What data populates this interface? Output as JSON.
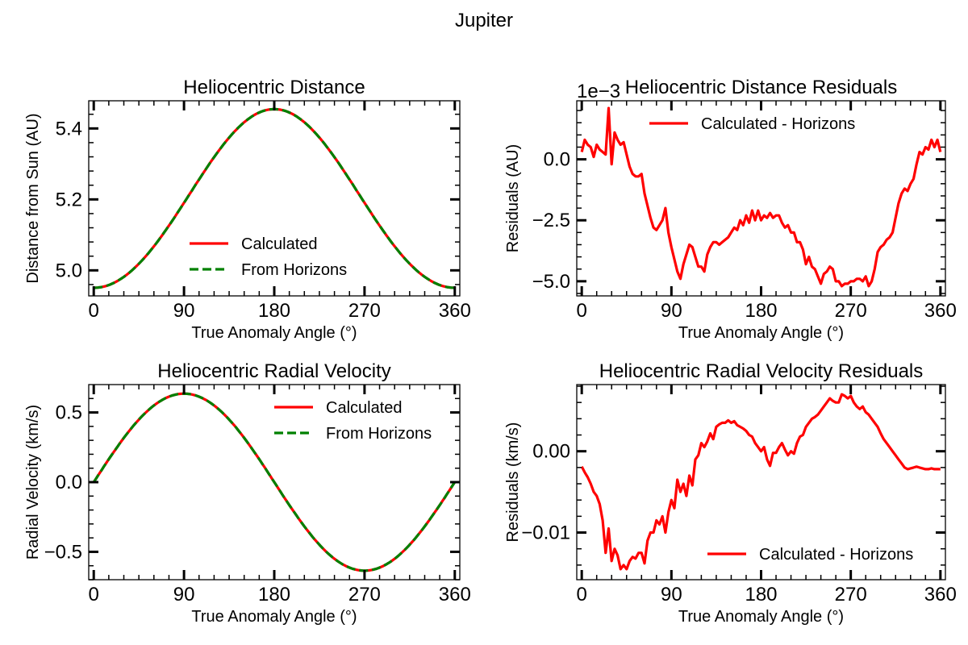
{
  "figure": {
    "title": "Jupiter"
  },
  "colors": {
    "calculated": "#ff0000",
    "horizons": "#008000",
    "axes": "#000000"
  },
  "chart_data": [
    {
      "type": "line",
      "title": "Heliocentric Distance",
      "xlabel": "True Anomaly Angle (°)",
      "ylabel": "Distance from Sun (AU)",
      "xlim": [
        -5,
        365
      ],
      "ylim": [
        4.928,
        5.478
      ],
      "xticks": [
        0,
        90,
        180,
        270,
        360
      ],
      "yticks": [
        5.0,
        5.2,
        5.4
      ],
      "ytick_labels": [
        "5.0",
        "5.2",
        "5.4"
      ],
      "offset_text": "",
      "legend": "lower-center",
      "generator": {
        "kind": "distance",
        "a": 5.2026,
        "e": 0.0484
      },
      "series": [
        {
          "name": "Calculated",
          "color": "#ff0000",
          "style": "solid"
        },
        {
          "name": "From Horizons",
          "color": "#008000",
          "style": "dashed"
        }
      ]
    },
    {
      "type": "line",
      "title": "Heliocentric Distance Residuals",
      "xlabel": "True Anomaly Angle (°)",
      "ylabel": "Residuals (AU)",
      "xlim": [
        -5,
        365
      ],
      "ylim": [
        -5.6,
        2.4
      ],
      "xticks": [
        0,
        90,
        180,
        270,
        360
      ],
      "yticks": [
        0,
        -2.5,
        -5.0
      ],
      "ytick_labels": [
        "0.0",
        "−2.5",
        "−5.0"
      ],
      "offset_text": "1e−3",
      "legend": "top-center",
      "series": [
        {
          "name": "Calculated - Horizons",
          "color": "#ff0000",
          "style": "solid",
          "x": [
            0,
            3,
            6,
            9,
            12,
            15,
            18,
            21,
            24,
            27,
            30,
            33,
            36,
            39,
            42,
            45,
            48,
            51,
            54,
            57,
            60,
            63,
            66,
            69,
            72,
            75,
            78,
            81,
            84,
            87,
            90,
            93,
            96,
            99,
            102,
            105,
            108,
            111,
            114,
            117,
            120,
            123,
            126,
            129,
            132,
            135,
            138,
            141,
            144,
            147,
            150,
            153,
            156,
            159,
            162,
            165,
            168,
            171,
            174,
            177,
            180,
            183,
            186,
            189,
            192,
            195,
            198,
            201,
            204,
            207,
            210,
            213,
            216,
            219,
            222,
            225,
            228,
            231,
            234,
            237,
            240,
            243,
            246,
            249,
            252,
            255,
            258,
            261,
            264,
            267,
            270,
            273,
            276,
            279,
            282,
            285,
            288,
            291,
            294,
            297,
            300,
            303,
            306,
            309,
            312,
            315,
            318,
            321,
            324,
            327,
            330,
            333,
            336,
            339,
            342,
            345,
            348,
            351,
            354,
            357,
            360
          ],
          "y": [
            0.3,
            0.8,
            0.6,
            0.5,
            0.1,
            0.6,
            0.4,
            0.3,
            0.2,
            2.1,
            -0.2,
            1.1,
            0.8,
            0.6,
            0.7,
            0.2,
            -0.3,
            -0.6,
            -0.7,
            -0.7,
            -0.6,
            -1.4,
            -1.9,
            -2.4,
            -2.8,
            -2.9,
            -2.7,
            -2.5,
            -2.0,
            -3.0,
            -3.6,
            -4.1,
            -4.6,
            -4.9,
            -4.3,
            -3.9,
            -3.5,
            -3.6,
            -4.0,
            -4.4,
            -4.4,
            -4.6,
            -3.9,
            -3.6,
            -3.4,
            -3.4,
            -3.5,
            -3.4,
            -3.3,
            -3.2,
            -3.0,
            -2.8,
            -2.9,
            -2.5,
            -2.7,
            -2.3,
            -2.6,
            -2.1,
            -2.5,
            -2.1,
            -2.5,
            -2.3,
            -2.4,
            -2.2,
            -2.4,
            -2.3,
            -2.3,
            -2.6,
            -2.8,
            -2.7,
            -3.0,
            -3.0,
            -3.4,
            -3.4,
            -3.7,
            -4.3,
            -4.0,
            -4.4,
            -4.5,
            -4.8,
            -5.1,
            -4.7,
            -4.6,
            -4.4,
            -4.5,
            -5.0,
            -5.0,
            -5.2,
            -5.1,
            -5.1,
            -5.0,
            -5.0,
            -4.9,
            -4.9,
            -5.0,
            -4.8,
            -5.2,
            -5.0,
            -4.5,
            -3.8,
            -3.6,
            -3.5,
            -3.3,
            -3.2,
            -3.0,
            -2.4,
            -1.8,
            -1.4,
            -1.2,
            -1.3,
            -1.0,
            -0.8,
            -0.2,
            0.3,
            0.2,
            0.5,
            0.4,
            0.8,
            0.5,
            0.8,
            0.3
          ]
        }
      ]
    },
    {
      "type": "line",
      "title": "Heliocentric Radial Velocity",
      "xlabel": "True Anomaly Angle (°)",
      "ylabel": "Radial Velocity (km/s)",
      "xlim": [
        -5,
        365
      ],
      "ylim": [
        -0.7,
        0.7
      ],
      "xticks": [
        0,
        90,
        180,
        270,
        360
      ],
      "yticks": [
        0.5,
        0.0,
        -0.5
      ],
      "ytick_labels": [
        "0.5",
        "0.0",
        "−0.5"
      ],
      "offset_text": "",
      "legend": "top-right",
      "generator": {
        "kind": "velocity",
        "amp": 0.635
      },
      "series": [
        {
          "name": "Calculated",
          "color": "#ff0000",
          "style": "solid"
        },
        {
          "name": "From Horizons",
          "color": "#008000",
          "style": "dashed"
        }
      ]
    },
    {
      "type": "line",
      "title": "Heliocentric Radial Velocity Residuals",
      "xlabel": "True Anomaly Angle (°)",
      "ylabel": "Residuals (km/s)",
      "xlim": [
        -5,
        365
      ],
      "ylim": [
        -0.0158,
        0.0082
      ],
      "xticks": [
        0,
        90,
        180,
        270,
        360
      ],
      "yticks": [
        0.0,
        -0.01
      ],
      "ytick_labels": [
        "0.00",
        "−0.01"
      ],
      "offset_text": "",
      "legend": "bottom-right",
      "series": [
        {
          "name": "Calculated - Horizons",
          "color": "#ff0000",
          "style": "solid",
          "x": [
            0,
            3,
            6,
            9,
            12,
            15,
            18,
            21,
            24,
            27,
            30,
            33,
            36,
            39,
            42,
            45,
            48,
            51,
            54,
            57,
            60,
            63,
            66,
            69,
            72,
            75,
            78,
            81,
            84,
            87,
            90,
            93,
            96,
            99,
            102,
            105,
            108,
            111,
            114,
            117,
            120,
            123,
            126,
            129,
            132,
            135,
            138,
            141,
            144,
            147,
            150,
            153,
            156,
            159,
            162,
            165,
            168,
            171,
            174,
            177,
            180,
            183,
            186,
            189,
            192,
            195,
            198,
            201,
            204,
            207,
            210,
            213,
            216,
            219,
            222,
            225,
            228,
            231,
            234,
            237,
            240,
            243,
            246,
            249,
            252,
            255,
            258,
            261,
            264,
            267,
            270,
            273,
            276,
            279,
            282,
            285,
            288,
            291,
            294,
            297,
            300,
            303,
            306,
            309,
            312,
            315,
            318,
            321,
            324,
            327,
            330,
            333,
            336,
            339,
            342,
            345,
            348,
            351,
            354,
            357,
            360
          ],
          "y": [
            -0.0019,
            -0.0026,
            -0.0032,
            -0.004,
            -0.005,
            -0.0055,
            -0.0065,
            -0.0085,
            -0.0125,
            -0.0095,
            -0.0135,
            -0.012,
            -0.0128,
            -0.0145,
            -0.014,
            -0.0145,
            -0.0135,
            -0.013,
            -0.0132,
            -0.0125,
            -0.0125,
            -0.0138,
            -0.011,
            -0.01,
            -0.01,
            -0.0085,
            -0.009,
            -0.008,
            -0.01,
            -0.0075,
            -0.006,
            -0.007,
            -0.0035,
            -0.005,
            -0.004,
            -0.0055,
            -0.003,
            -0.0042,
            -0.001,
            -0.0005,
            0.001,
            0.0005,
            0.0012,
            0.0022,
            0.0015,
            0.003,
            0.0033,
            0.0035,
            0.0035,
            0.0038,
            0.0035,
            0.0037,
            0.0032,
            0.003,
            0.0028,
            0.0025,
            0.002,
            0.0018,
            0.001,
            0.0005,
            0.0,
            0.0005,
            -0.001,
            -0.0018,
            -0.0002,
            -0.0002,
            0.0005,
            0.001,
            0.0002,
            -0.0005,
            0.0,
            -0.0003,
            0.001,
            0.0018,
            0.002,
            0.003,
            0.0035,
            0.004,
            0.0042,
            0.0045,
            0.005,
            0.0055,
            0.006,
            0.0065,
            0.0062,
            0.006,
            0.006,
            0.007,
            0.0068,
            0.0065,
            0.0068,
            0.006,
            0.0055,
            0.0052,
            0.0055,
            0.0048,
            0.0045,
            0.004,
            0.0035,
            0.003,
            0.0022,
            0.0015,
            0.001,
            0.0005,
            0.0,
            -0.0005,
            -0.001,
            -0.0015,
            -0.002,
            -0.0022,
            -0.0021,
            -0.002,
            -0.0019,
            -0.002,
            -0.0021,
            -0.0022,
            -0.0022,
            -0.0021,
            -0.0022,
            -0.0022,
            -0.0022
          ]
        }
      ]
    }
  ]
}
